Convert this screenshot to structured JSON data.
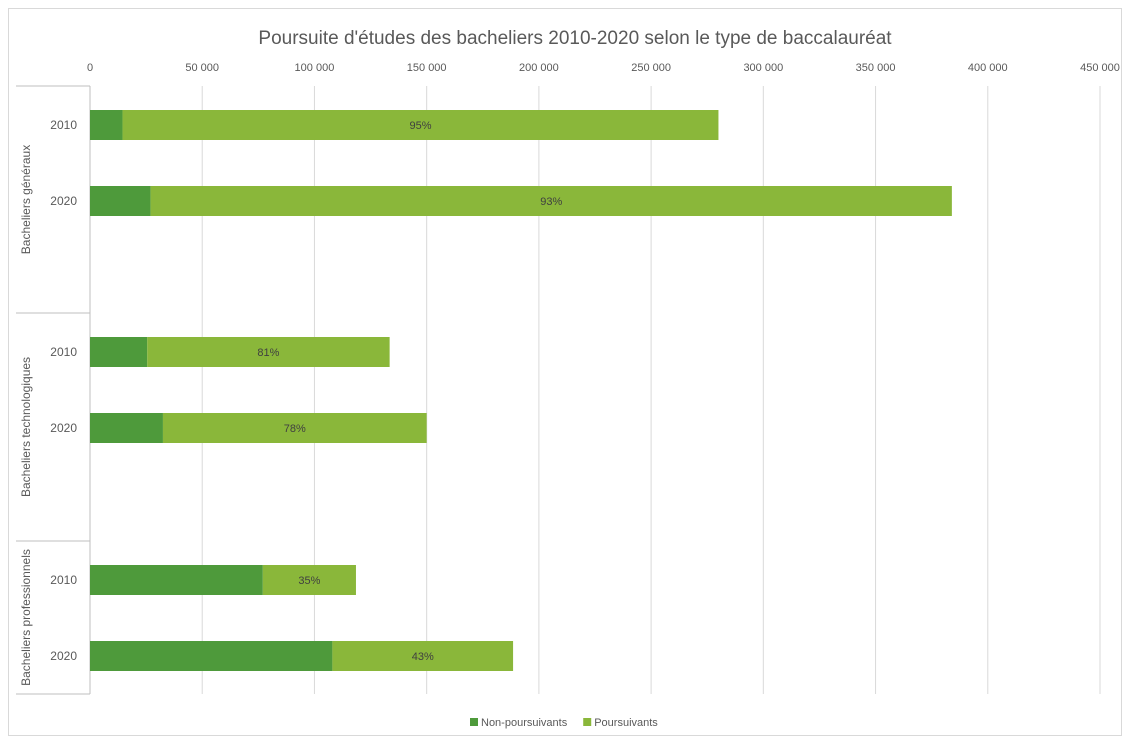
{
  "chart_data": {
    "type": "bar",
    "orientation": "horizontal",
    "stacked": true,
    "title": "Poursuite d'études des bacheliers 2010-2020 selon le type de baccalauréat",
    "x_ticks": [
      "0",
      "50 000",
      "100 000",
      "150 000",
      "200 000",
      "250 000",
      "300 000",
      "350 000",
      "400 000",
      "450 000"
    ],
    "xlim": [
      0,
      450000
    ],
    "x_axis_position": "top",
    "grid": true,
    "legend_position": "bottom",
    "groups": [
      {
        "label": "Bacheliers généraux",
        "rows": [
          {
            "category": "2010",
            "values": [
              14500,
              265500
            ],
            "label": "95%"
          },
          {
            "category": "2020",
            "values": [
              27000,
              357000
            ],
            "label": "93%"
          }
        ]
      },
      {
        "label": "Bacheliers technologiques",
        "rows": [
          {
            "category": "2010",
            "values": [
              25500,
              108000
            ],
            "label": "81%"
          },
          {
            "category": "2020",
            "values": [
              32500,
              117500
            ],
            "label": "78%"
          }
        ]
      },
      {
        "label": "Bacheliers professionnels",
        "rows": [
          {
            "category": "2010",
            "values": [
              77000,
              41500
            ],
            "label": "35%"
          },
          {
            "category": "2020",
            "values": [
              108000,
              80500
            ],
            "label": "43%"
          }
        ]
      }
    ],
    "series": [
      {
        "name": "Non-poursuivants",
        "color": "#4e9a3b"
      },
      {
        "name": "Poursuivants",
        "color": "#8ab73a"
      }
    ]
  }
}
